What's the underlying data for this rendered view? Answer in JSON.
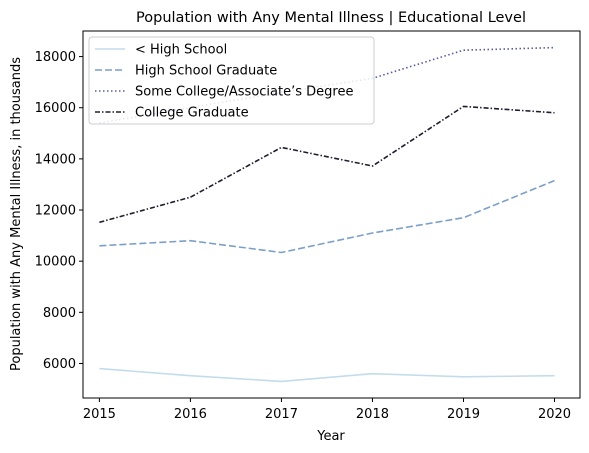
{
  "chart_data": {
    "type": "line",
    "title": "Population with Any Mental Illness | Educational Level",
    "xlabel": "Year",
    "ylabel": "Population with Any Mental Illness, in thousands",
    "x": [
      2015,
      2016,
      2017,
      2018,
      2019,
      2020
    ],
    "xlim": [
      2014.82,
      2020.28
    ],
    "ylim": [
      4650,
      19000
    ],
    "yticks": [
      6000,
      8000,
      10000,
      12000,
      14000,
      16000,
      18000
    ],
    "grid": false,
    "legend_position": "upper-left",
    "series": [
      {
        "name": "< High School",
        "values": [
          5800,
          5520,
          5300,
          5600,
          5480,
          5520
        ],
        "color": "#c2dcec",
        "dash": "solid"
      },
      {
        "name": "High School Graduate",
        "values": [
          10600,
          10800,
          10340,
          11100,
          11700,
          13150
        ],
        "color": "#7c9fc9",
        "dash": "dashed"
      },
      {
        "name": "Some College/Associate’s Degree",
        "values": [
          15400,
          16000,
          16600,
          17150,
          18250,
          18350
        ],
        "color": "#575a9c",
        "dash": "dotted"
      },
      {
        "name": "College Graduate",
        "values": [
          11520,
          12500,
          14450,
          13720,
          16050,
          15800
        ],
        "color": "#1e1e30",
        "dash": "dashdot"
      }
    ]
  }
}
